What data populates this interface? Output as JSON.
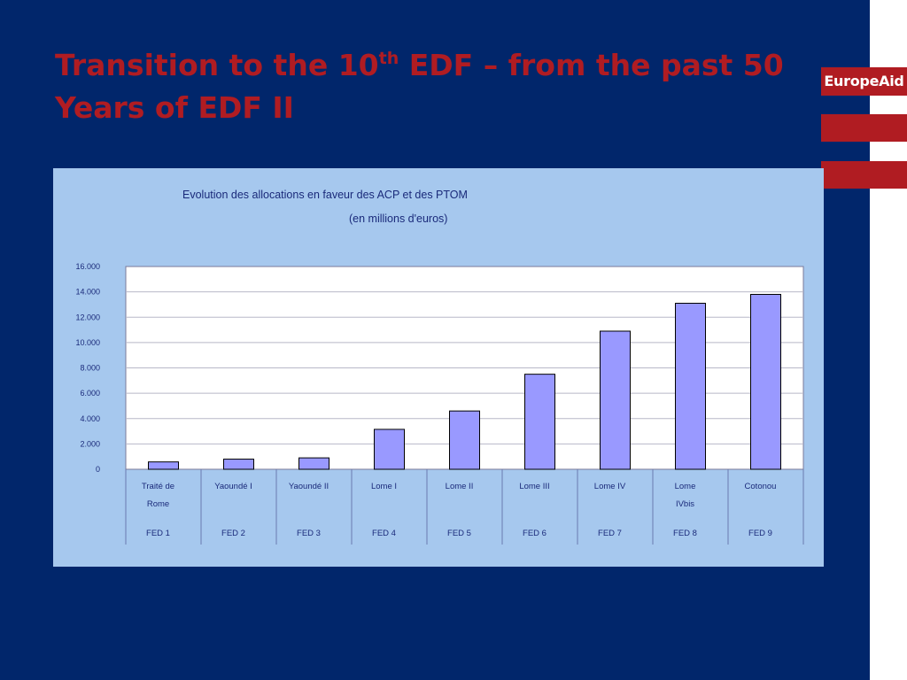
{
  "slide": {
    "title_part1": "Transition to the 10",
    "title_sup": "th",
    "title_part2": " EDF – from the past 50 Years of EDF II",
    "logo_text": "EuropeAid"
  },
  "colors": {
    "background": "#01266b",
    "accent_red": "#b01c22",
    "panel": "#a6c8ee",
    "bar_fill": "#9999ff",
    "text_dark": "#1a2a7a"
  },
  "chart_data": {
    "type": "bar",
    "title": "Evolution des allocations en faveur des ACP et des PTOM",
    "subtitle": "(en millions d'euros)",
    "categories": [
      {
        "line1": "Traité de",
        "line2": "Rome",
        "fed": "FED 1"
      },
      {
        "line1": "Yaoundé I",
        "line2": "",
        "fed": "FED 2"
      },
      {
        "line1": "Yaoundé II",
        "line2": "",
        "fed": "FED 3"
      },
      {
        "line1": "Lome I",
        "line2": "",
        "fed": "FED 4"
      },
      {
        "line1": "Lome II",
        "line2": "",
        "fed": "FED 5"
      },
      {
        "line1": "Lome III",
        "line2": "",
        "fed": "FED 6"
      },
      {
        "line1": "Lome IV",
        "line2": "",
        "fed": "FED 7"
      },
      {
        "line1": "Lome",
        "line2": "IVbis",
        "fed": "FED 8"
      },
      {
        "line1": "Cotonou",
        "line2": "",
        "fed": "FED 9"
      }
    ],
    "values": [
      581,
      800,
      900,
      3150,
      4600,
      7500,
      10900,
      13100,
      13800
    ],
    "ylim": [
      0,
      16000
    ],
    "yticks": [
      0,
      2000,
      4000,
      6000,
      8000,
      10000,
      12000,
      14000,
      16000
    ],
    "ytick_labels": [
      "0",
      "2.000",
      "4.000",
      "6.000",
      "8.000",
      "10.000",
      "12.000",
      "14.000",
      "16.000"
    ],
    "grid": true,
    "legend": "none"
  }
}
